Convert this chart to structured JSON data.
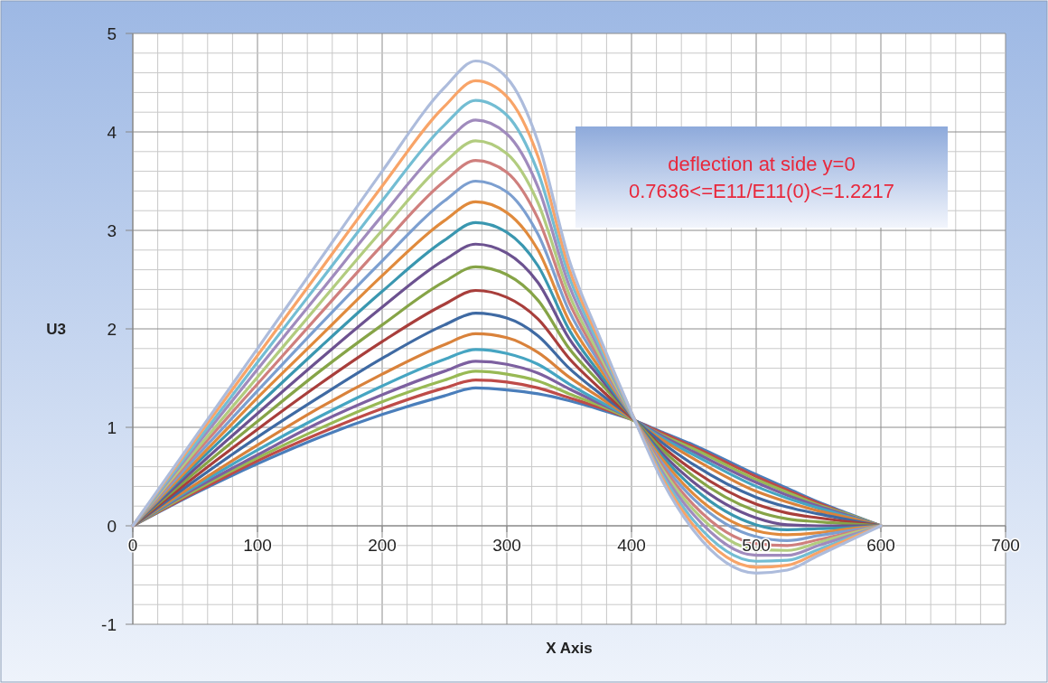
{
  "chart_data": {
    "type": "line",
    "xlabel": "X Axis",
    "ylabel": "U3",
    "annotations": [
      "deflection at side y=0\n0.7636<=E11/E11(0)<=1.2217"
    ],
    "x": [
      0,
      50,
      100,
      150,
      200,
      250,
      275,
      300,
      325,
      350,
      375,
      400,
      425,
      450,
      500,
      525,
      550,
      575,
      600
    ],
    "xlim": [
      0,
      700
    ],
    "ylim": [
      -1,
      5
    ],
    "xticks": [
      0,
      {
        "value": 20,
        "label": null
      },
      {
        "value": 40,
        "label": null
      },
      {
        "value": 60,
        "label": null
      },
      {
        "value": 80,
        "label": null
      },
      100,
      {
        "value": 120,
        "label": null
      },
      {
        "value": 140,
        "label": null
      },
      {
        "value": 160,
        "label": null
      },
      {
        "value": 180,
        "label": null
      },
      200,
      {
        "value": 220,
        "label": null
      },
      {
        "value": 240,
        "label": null
      },
      {
        "value": 260,
        "label": null
      },
      {
        "value": 280,
        "label": null
      },
      300,
      {
        "value": 320,
        "label": null
      },
      {
        "value": 340,
        "label": null
      },
      {
        "value": 360,
        "label": null
      },
      {
        "value": 380,
        "label": null
      },
      400,
      {
        "value": 420,
        "label": null
      },
      {
        "value": 440,
        "label": null
      },
      {
        "value": 460,
        "label": null
      },
      {
        "value": 480,
        "label": null
      },
      500,
      {
        "value": 520,
        "label": null
      },
      {
        "value": 540,
        "label": null
      },
      {
        "value": 560,
        "label": null
      },
      {
        "value": 580,
        "label": null
      },
      600,
      {
        "value": 620,
        "label": null
      },
      {
        "value": 640,
        "label": null
      },
      {
        "value": 660,
        "label": null
      },
      {
        "value": 680,
        "label": null
      },
      700
    ],
    "yticks": [
      -1,
      {
        "value": -0.8,
        "label": null
      },
      {
        "value": -0.6,
        "label": null
      },
      {
        "value": -0.4,
        "label": null
      },
      {
        "value": -0.2,
        "label": null
      },
      0,
      {
        "value": 0.2,
        "label": null
      },
      {
        "value": 0.4,
        "label": null
      },
      {
        "value": 0.6,
        "label": null
      },
      {
        "value": 0.8,
        "label": null
      },
      1,
      {
        "value": 1.2,
        "label": null
      },
      {
        "value": 1.4,
        "label": null
      },
      {
        "value": 1.6,
        "label": null
      },
      {
        "value": 1.8,
        "label": null
      },
      2,
      {
        "value": 2.2,
        "label": null
      },
      {
        "value": 2.4,
        "label": null
      },
      {
        "value": 2.6,
        "label": null
      },
      {
        "value": 2.8,
        "label": null
      },
      3,
      {
        "value": 3.2,
        "label": null
      },
      {
        "value": 3.4,
        "label": null
      },
      {
        "value": 3.6,
        "label": null
      },
      {
        "value": 3.8,
        "label": null
      },
      4,
      {
        "value": 4.2,
        "label": null
      },
      {
        "value": 4.4,
        "label": null
      },
      {
        "value": 4.6,
        "label": null
      },
      {
        "value": 4.8,
        "label": null
      },
      5
    ],
    "grid": true,
    "marker": "none",
    "line_style": "solid",
    "series": [
      {
        "color": "#4a7ebb",
        "values": [
          0,
          0.33,
          0.63,
          0.9,
          1.13,
          1.32,
          1.4,
          1.38,
          1.34,
          1.27,
          1.18,
          1.08,
          0.95,
          0.82,
          0.52,
          0.38,
          0.24,
          0.12,
          0
        ]
      },
      {
        "color": "#be4b48",
        "values": [
          0,
          0.34,
          0.66,
          0.94,
          1.19,
          1.4,
          1.48,
          1.46,
          1.4,
          1.3,
          1.2,
          1.08,
          0.94,
          0.8,
          0.5,
          0.36,
          0.23,
          0.11,
          0
        ]
      },
      {
        "color": "#98b954",
        "values": [
          0,
          0.36,
          0.69,
          0.99,
          1.26,
          1.48,
          1.57,
          1.54,
          1.47,
          1.34,
          1.22,
          1.08,
          0.92,
          0.78,
          0.47,
          0.34,
          0.21,
          0.11,
          0
        ]
      },
      {
        "color": "#7d60a0",
        "values": [
          0,
          0.38,
          0.72,
          1.05,
          1.33,
          1.57,
          1.67,
          1.64,
          1.55,
          1.39,
          1.24,
          1.09,
          0.91,
          0.75,
          0.44,
          0.31,
          0.2,
          0.1,
          0
        ]
      },
      {
        "color": "#46a5c2",
        "values": [
          0,
          0.4,
          0.77,
          1.11,
          1.42,
          1.69,
          1.79,
          1.75,
          1.64,
          1.44,
          1.26,
          1.09,
          0.89,
          0.72,
          0.4,
          0.28,
          0.18,
          0.09,
          0
        ]
      },
      {
        "color": "#d9823b",
        "values": [
          0,
          0.42,
          0.82,
          1.2,
          1.54,
          1.84,
          1.95,
          1.91,
          1.76,
          1.51,
          1.3,
          1.09,
          0.87,
          0.68,
          0.35,
          0.24,
          0.15,
          0.08,
          0
        ]
      },
      {
        "color": "#3f6aa3",
        "values": [
          0,
          0.46,
          0.9,
          1.31,
          1.7,
          2.04,
          2.16,
          2.11,
          1.93,
          1.6,
          1.34,
          1.1,
          0.84,
          0.62,
          0.29,
          0.19,
          0.12,
          0.06,
          0
        ]
      },
      {
        "color": "#a83e3b",
        "values": [
          0,
          0.5,
          0.98,
          1.44,
          1.87,
          2.25,
          2.39,
          2.32,
          2.1,
          1.7,
          1.39,
          1.1,
          0.8,
          0.56,
          0.22,
          0.13,
          0.08,
          0.04,
          0
        ]
      },
      {
        "color": "#86a447",
        "values": [
          0,
          0.54,
          1.06,
          1.57,
          2.04,
          2.48,
          2.63,
          2.55,
          2.29,
          1.8,
          1.45,
          1.11,
          0.77,
          0.5,
          0.15,
          0.07,
          0.04,
          0.02,
          0
        ]
      },
      {
        "color": "#6c5290",
        "values": [
          0,
          0.58,
          1.14,
          1.69,
          2.22,
          2.7,
          2.86,
          2.77,
          2.47,
          1.9,
          1.5,
          1.11,
          0.73,
          0.44,
          0.08,
          0.01,
          0,
          0,
          0
        ]
      },
      {
        "color": "#3a97b0",
        "values": [
          0,
          0.62,
          1.22,
          1.81,
          2.38,
          2.9,
          3.08,
          2.98,
          2.64,
          1.99,
          1.54,
          1.12,
          0.7,
          0.38,
          0.01,
          -0.04,
          -0.03,
          -0.02,
          0
        ]
      },
      {
        "color": "#e08a3c",
        "values": [
          0,
          0.65,
          1.3,
          1.92,
          2.54,
          3.1,
          3.29,
          3.18,
          2.8,
          2.08,
          1.59,
          1.12,
          0.67,
          0.32,
          -0.05,
          -0.09,
          -0.07,
          -0.03,
          0
        ]
      },
      {
        "color": "#7c9fd0",
        "values": [
          0,
          0.69,
          1.37,
          2.04,
          2.69,
          3.3,
          3.5,
          3.39,
          2.96,
          2.18,
          1.64,
          1.12,
          0.63,
          0.27,
          -0.11,
          -0.15,
          -0.1,
          -0.05,
          0
        ]
      },
      {
        "color": "#cf7f7d",
        "values": [
          0,
          0.73,
          1.44,
          2.15,
          2.85,
          3.5,
          3.71,
          3.59,
          3.12,
          2.27,
          1.68,
          1.13,
          0.6,
          0.21,
          -0.18,
          -0.2,
          -0.14,
          -0.07,
          0
        ]
      },
      {
        "color": "#b2cc7f",
        "values": [
          0,
          0.76,
          1.51,
          2.26,
          3,
          3.69,
          3.91,
          3.78,
          3.28,
          2.35,
          1.72,
          1.13,
          0.57,
          0.16,
          -0.24,
          -0.25,
          -0.17,
          -0.08,
          0
        ]
      },
      {
        "color": "#a08bbd",
        "values": [
          0,
          0.8,
          1.59,
          2.37,
          3.15,
          3.88,
          4.12,
          3.98,
          3.44,
          2.44,
          1.77,
          1.14,
          0.54,
          0.11,
          -0.3,
          -0.3,
          -0.2,
          -0.1,
          0
        ]
      },
      {
        "color": "#73bdd3",
        "values": [
          0,
          0.83,
          1.66,
          2.48,
          3.3,
          4.07,
          4.32,
          4.17,
          3.59,
          2.53,
          1.81,
          1.14,
          0.51,
          0.05,
          -0.36,
          -0.35,
          -0.24,
          -0.12,
          0
        ]
      },
      {
        "color": "#f8a468",
        "values": [
          0,
          0.87,
          1.73,
          2.59,
          3.45,
          4.26,
          4.52,
          4.36,
          3.75,
          2.61,
          1.86,
          1.15,
          0.48,
          0,
          -0.42,
          -0.4,
          -0.27,
          -0.13,
          0
        ]
      },
      {
        "color": "#adbcdc",
        "values": [
          0,
          0.9,
          1.8,
          2.7,
          3.6,
          4.45,
          4.72,
          4.55,
          3.9,
          2.7,
          1.9,
          1.15,
          0.45,
          -0.05,
          -0.48,
          -0.45,
          -0.3,
          -0.15,
          0
        ]
      }
    ]
  }
}
